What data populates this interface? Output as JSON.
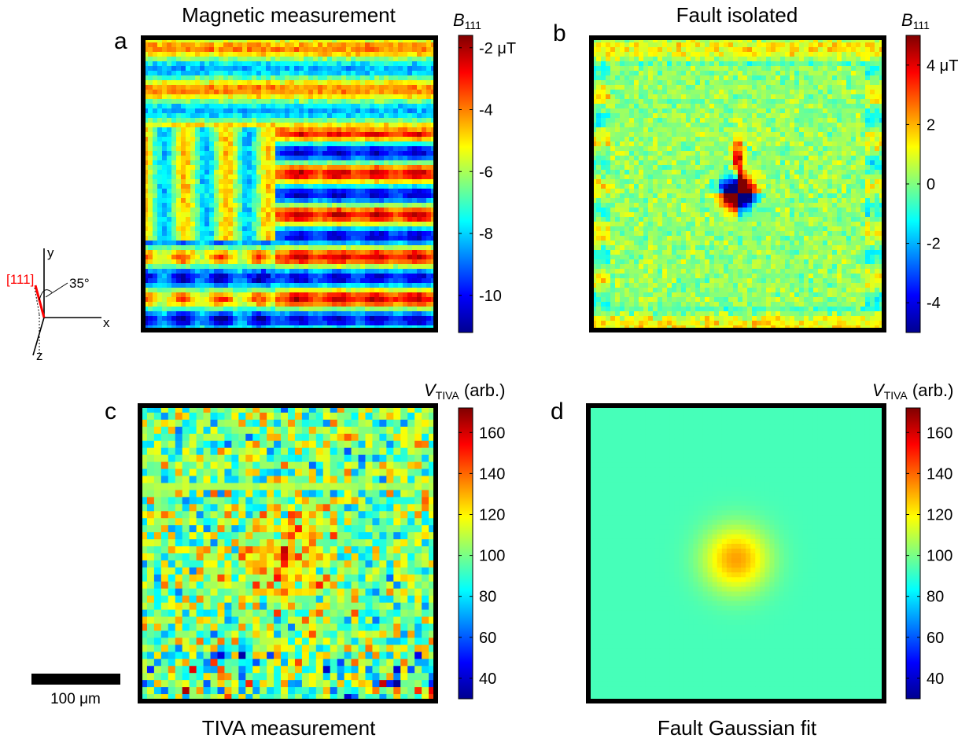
{
  "chart_data": [
    {
      "type": "heatmap",
      "panel_letter": "a",
      "title": "Magnetic measurement",
      "colorbar_label": {
        "main": "B",
        "sub": "111"
      },
      "colorbar_ticks": [
        "-2 μT",
        "-4",
        "-6",
        "-8",
        "-10"
      ],
      "colorbar_tick_values": [
        -2,
        -4,
        -6,
        -8,
        -10
      ],
      "color_range": [
        -11.2,
        -1.6
      ],
      "colormap": "jet",
      "feature": "stripes"
    },
    {
      "type": "heatmap",
      "panel_letter": "b",
      "title": "Fault isolated",
      "colorbar_label": {
        "main": "B",
        "sub": "111"
      },
      "colorbar_ticks": [
        "4 μT",
        "2",
        "0",
        "-2",
        "-4"
      ],
      "colorbar_tick_values": [
        4,
        2,
        0,
        -2,
        -4
      ],
      "color_range": [
        -5,
        5
      ],
      "colormap": "jet",
      "feature": "dipole"
    },
    {
      "type": "heatmap",
      "panel_letter": "c",
      "title": "TIVA measurement",
      "colorbar_label": {
        "main": "V",
        "sub": "TIVA",
        "suffix": " (arb.)"
      },
      "colorbar_ticks": [
        "160",
        "140",
        "120",
        "100",
        "80",
        "60",
        "40"
      ],
      "colorbar_tick_values": [
        160,
        140,
        120,
        100,
        80,
        60,
        40
      ],
      "color_range": [
        30,
        172
      ],
      "colormap": "jet",
      "feature": "noisy-pixels"
    },
    {
      "type": "heatmap",
      "panel_letter": "d",
      "title": "Fault Gaussian fit",
      "colorbar_label": {
        "main": "V",
        "sub": "TIVA",
        "suffix": " (arb.)"
      },
      "colorbar_ticks": [
        "160",
        "140",
        "120",
        "100",
        "80",
        "60",
        "40"
      ],
      "colorbar_tick_values": [
        160,
        140,
        120,
        100,
        80,
        60,
        40
      ],
      "color_range": [
        30,
        172
      ],
      "colormap": "jet",
      "feature": "gaussian",
      "background_value": 93,
      "peak_value": 132
    }
  ],
  "axes_inset": {
    "x": "x",
    "y": "y",
    "z": "z",
    "direction": "[111]",
    "angle": "35°"
  },
  "scale_bar": {
    "label": "100 μm"
  },
  "colors": {
    "direction_red": "#ff0000",
    "frame": "#000000"
  }
}
